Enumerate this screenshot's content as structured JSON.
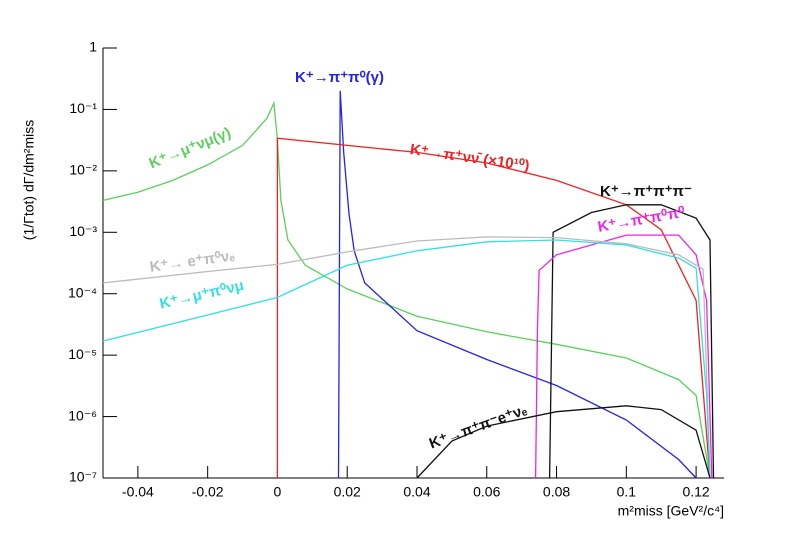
{
  "chart_data": {
    "type": "line",
    "y_label": "(1/Γtot) dΓ/dm²miss",
    "x_label": "m²miss [GeV²/c⁴]",
    "log_y": true,
    "xlim": [
      -0.05,
      0.128
    ],
    "ylim": [
      1e-07,
      1
    ],
    "xticks": [
      -0.04,
      -0.02,
      0,
      0.02,
      0.04,
      0.06,
      0.08,
      0.1,
      0.12
    ],
    "yticks": [
      {
        "value": 1e-07,
        "label": "10⁻⁷"
      },
      {
        "value": 1e-06,
        "label": "10⁻⁶"
      },
      {
        "value": 1e-05,
        "label": "10⁻⁵"
      },
      {
        "value": 0.0001,
        "label": "10⁻⁴"
      },
      {
        "value": 0.001,
        "label": "10⁻³"
      },
      {
        "value": 0.01,
        "label": "10⁻²"
      },
      {
        "value": 0.1,
        "label": "10⁻¹"
      },
      1
    ],
    "series": [
      {
        "name": "K⁺→μ⁺νμ(γ)",
        "color": "#5ccf5c",
        "x": [
          -0.05,
          -0.04,
          -0.03,
          -0.02,
          -0.01,
          -0.003,
          -0.001,
          0,
          0.001,
          0.003,
          0.008,
          0.02,
          0.04,
          0.06,
          0.08,
          0.1,
          0.115,
          0.12,
          0.124
        ],
        "values": [
          0.0033,
          0.0045,
          0.007,
          0.0125,
          0.026,
          0.072,
          0.127,
          0.032,
          0.0033,
          0.00075,
          0.00029,
          0.00012,
          4.3e-05,
          2.4e-05,
          1.5e-05,
          9e-06,
          4e-06,
          2.2e-06,
          1e-07
        ]
      },
      {
        "name": "K⁺→π⁺π⁰(γ)",
        "color": "#2222ee",
        "x": [
          0.0175,
          0.018,
          0.019,
          0.0205,
          0.022,
          0.025,
          0.04,
          0.06,
          0.08,
          0.1,
          0.115,
          0.12
        ],
        "values": [
          1e-07,
          0.2,
          0.02,
          0.002,
          0.0005,
          0.00015,
          2.5e-05,
          8.5e-06,
          3.2e-06,
          8.8e-07,
          2e-07,
          1e-07
        ]
      },
      {
        "name": "K⁺→π⁺νν̄ (×10¹⁰)",
        "color": "#ee2222",
        "x": [
          0,
          0,
          0.02,
          0.04,
          0.06,
          0.08,
          0.1,
          0.11,
          0.12,
          0.124
        ],
        "values": [
          1e-07,
          0.034,
          0.026,
          0.02,
          0.0134,
          0.007,
          0.0028,
          0.0011,
          7.8e-05,
          1e-07
        ]
      },
      {
        "name": "K⁺→π⁺π⁺π⁻",
        "color": "#111111",
        "x": [
          0.078,
          0.079,
          0.09,
          0.1,
          0.11,
          0.12,
          0.124,
          0.125
        ],
        "values": [
          1e-07,
          0.001,
          0.0021,
          0.0028,
          0.0028,
          0.0017,
          0.00075,
          1e-07
        ]
      },
      {
        "name": "K⁺→π⁺π⁰π⁰",
        "color": "#ee22ee",
        "x": [
          0.074,
          0.0745,
          0.075,
          0.08,
          0.1,
          0.115,
          0.12,
          0.123,
          0.1245
        ],
        "values": [
          1e-07,
          2.5e-05,
          0.00024,
          0.00043,
          0.0009,
          0.0009,
          0.00043,
          7.8e-05,
          1e-07
        ]
      },
      {
        "name": "K⁺→ e⁺π⁰νₑ",
        "color": "#bbbbbb",
        "x": [
          -0.05,
          -0.02,
          0,
          0.02,
          0.04,
          0.06,
          0.08,
          0.1,
          0.115,
          0.122,
          0.124
        ],
        "values": [
          0.00015,
          0.00023,
          0.0003,
          0.00048,
          0.00072,
          0.00084,
          0.00082,
          0.00065,
          0.00043,
          0.00025,
          1e-07
        ]
      },
      {
        "name": "K⁺→μ⁺π⁰νμ",
        "color": "#33e0e0",
        "x": [
          -0.05,
          -0.02,
          0,
          0.02,
          0.04,
          0.06,
          0.08,
          0.1,
          0.115,
          0.12,
          0.123,
          0.124
        ],
        "values": [
          1.7e-05,
          4.5e-05,
          8.7e-05,
          0.00029,
          0.0005,
          0.0007,
          0.00075,
          0.00062,
          0.00038,
          0.00026,
          2.3e-06,
          1e-07
        ]
      },
      {
        "name": "K⁺→π⁺π⁻e⁺νₑ",
        "color": "#111111",
        "x": [
          0.04,
          0.05,
          0.06,
          0.08,
          0.1,
          0.11,
          0.12,
          0.124
        ],
        "values": [
          1e-07,
          4e-07,
          7e-07,
          1.2e-06,
          1.5e-06,
          1.3e-06,
          6e-07,
          1e-07
        ]
      }
    ]
  }
}
